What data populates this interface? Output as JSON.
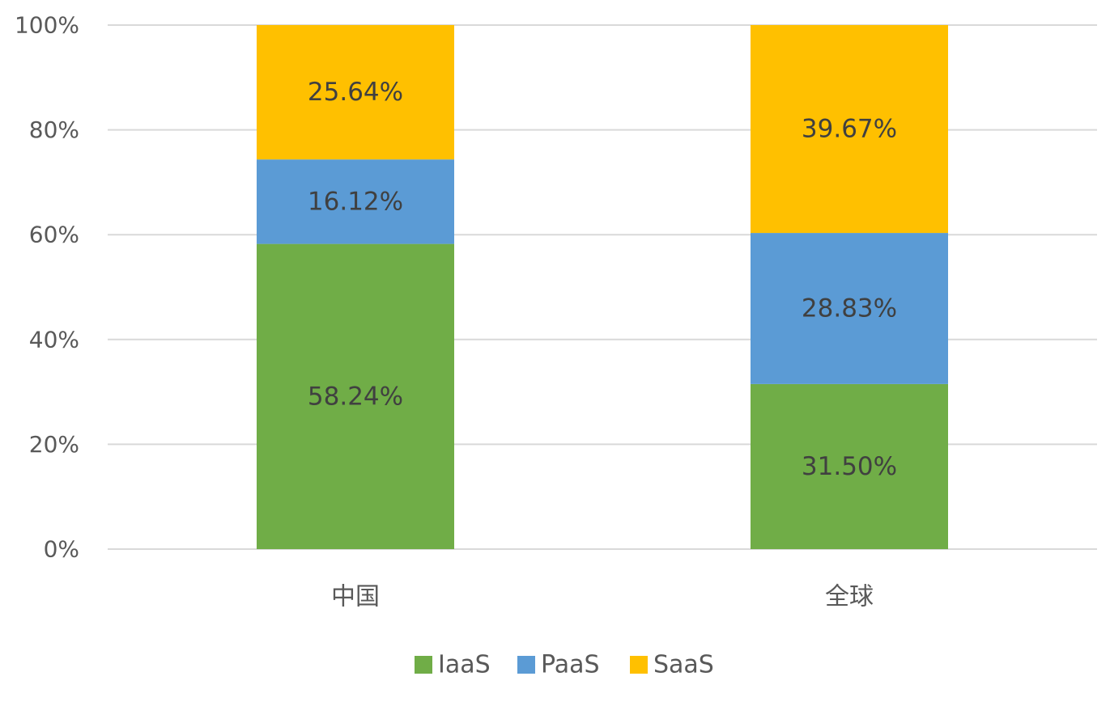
{
  "chart_data": {
    "type": "bar",
    "stacked": true,
    "title": "",
    "xlabel": "",
    "ylabel": "",
    "categories": [
      "中国",
      "全球"
    ],
    "series": [
      {
        "name": "IaaS",
        "values": [
          58.24,
          31.5
        ],
        "labels": [
          "58.24%",
          "31.50%"
        ],
        "color": "#70AD47"
      },
      {
        "name": "PaaS",
        "values": [
          16.12,
          28.83
        ],
        "labels": [
          "16.12%",
          "28.83%"
        ],
        "color": "#5B9BD5"
      },
      {
        "name": "SaaS",
        "values": [
          25.64,
          39.67
        ],
        "labels": [
          "25.64%",
          "39.67%"
        ],
        "color": "#FFC000"
      }
    ],
    "ylim": [
      0,
      100
    ],
    "yticks": [
      0,
      20,
      40,
      60,
      80,
      100
    ],
    "ytick_labels": [
      "0%",
      "20%",
      "40%",
      "60%",
      "80%",
      "100%"
    ],
    "grid": true,
    "legend_position": "bottom-center"
  }
}
